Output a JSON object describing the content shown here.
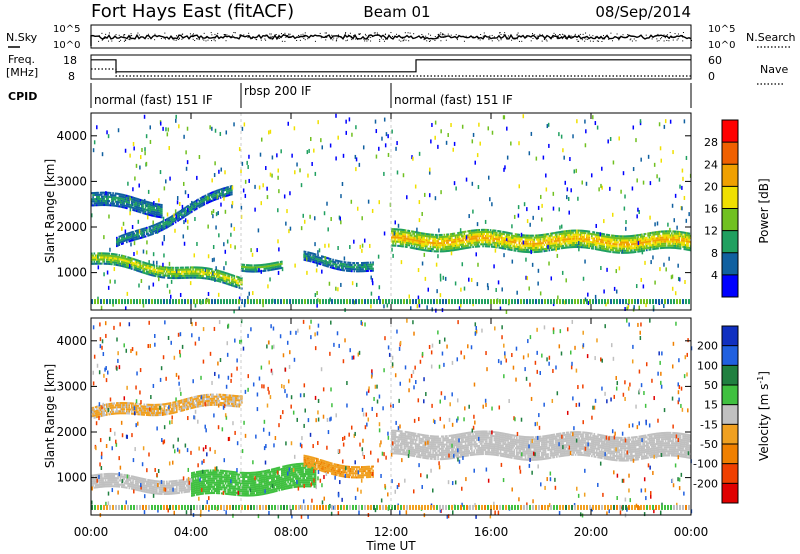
{
  "header": {
    "station": "Fort Hays East (fitACF)",
    "beam": "Beam 01",
    "date": "08/Sep/2014"
  },
  "noise_panel": {
    "left_label": "N.Sky",
    "right_label": "N.Search",
    "left_ticks": [
      "10^5",
      "10^0"
    ],
    "right_ticks": [
      "10^5",
      "10^0"
    ]
  },
  "freq_panel": {
    "left_label_top": "Freq.",
    "left_label_bottom": "[MHz]",
    "left_ticks": [
      "18",
      "8"
    ],
    "right_ticks": [
      "60",
      "0"
    ],
    "right_label": "Nave"
  },
  "cpid_panel": {
    "label": "CPID",
    "segments": [
      {
        "name": "normal (fast) 151 IF",
        "start_h": 0.0,
        "end_h": 6.0
      },
      {
        "name": "rbsp 200 IF",
        "start_h": 6.0,
        "end_h": 12.0
      },
      {
        "name": "normal (fast) 151 IF",
        "start_h": 12.0,
        "end_h": 24.0
      }
    ]
  },
  "power_colorbar": {
    "label": "Power [dB]",
    "ticks": [
      "28",
      "24",
      "20",
      "16",
      "12",
      "8",
      "4"
    ],
    "colors": [
      "#ff0000",
      "#f06000",
      "#f0a000",
      "#f0e000",
      "#70c020",
      "#20a060",
      "#1060a0",
      "#0000ff"
    ]
  },
  "velocity_colorbar": {
    "label": "Velocity [m s",
    "label_sup": "-1",
    "label_end": "]",
    "ticks": [
      "200",
      "100",
      "50",
      "15",
      "-15",
      "-50",
      "-100",
      "-200"
    ],
    "colors": [
      "#1030c0",
      "#2060e0",
      "#208040",
      "#40c040",
      "#c0c0c0",
      "#f0a020",
      "#f08000",
      "#f04000",
      "#e00000"
    ]
  },
  "x_axis": {
    "label": "Time UT",
    "ticks": [
      "00:00",
      "04:00",
      "08:00",
      "12:00",
      "16:00",
      "20:00",
      "00:00"
    ]
  },
  "y_axis": {
    "label": "Slant Range [km]",
    "ticks": [
      "1000",
      "2000",
      "3000",
      "4000"
    ]
  },
  "chart_data": [
    {
      "type": "heatmap",
      "title": "Power [dB]",
      "xlabel": "Time UT",
      "ylabel": "Slant Range [km]",
      "xlim_hours": [
        0,
        24
      ],
      "ylim_km": [
        180,
        4500
      ],
      "color_range_db": [
        0,
        30
      ],
      "bands": [
        {
          "from_h": 0.0,
          "to_h": 6.0,
          "range_km_start": 1300,
          "range_km_end": 800,
          "width_km": 260,
          "peak_db": 18
        },
        {
          "from_h": 0.0,
          "to_h": 2.8,
          "range_km_start": 2600,
          "range_km_end": 2400,
          "width_km": 300,
          "peak_db": 10
        },
        {
          "from_h": 1.0,
          "to_h": 5.6,
          "range_km_start": 1600,
          "range_km_end": 2800,
          "width_km": 200,
          "peak_db": 10
        },
        {
          "from_h": 6.0,
          "to_h": 7.6,
          "range_km_start": 1150,
          "range_km_end": 1150,
          "width_km": 180,
          "peak_db": 14
        },
        {
          "from_h": 8.5,
          "to_h": 11.3,
          "range_km_start": 1300,
          "range_km_end": 1100,
          "width_km": 200,
          "peak_db": 10
        },
        {
          "from_h": 12.0,
          "to_h": 24.0,
          "range_km_start": 1700,
          "range_km_end": 1650,
          "width_km": 380,
          "peak_db": 22
        }
      ]
    },
    {
      "type": "heatmap",
      "title": "Velocity",
      "xlabel": "Time UT",
      "ylabel": "Slant Range [km]",
      "xlim_hours": [
        0,
        24
      ],
      "ylim_km": [
        180,
        4500
      ],
      "color_range_ms": [
        -200,
        200
      ],
      "bands": [
        {
          "from_h": 0.0,
          "to_h": 4.0,
          "range_km_start": 900,
          "range_km_end": 800,
          "width_km": 300,
          "velocity_ms": 0
        },
        {
          "from_h": 4.0,
          "to_h": 9.0,
          "range_km_start": 800,
          "range_km_end": 1000,
          "width_km": 500,
          "velocity_ms": 30
        },
        {
          "from_h": 8.5,
          "to_h": 11.3,
          "range_km_start": 1300,
          "range_km_end": 1100,
          "width_km": 250,
          "velocity_ms": -40
        },
        {
          "from_h": 0.0,
          "to_h": 6.0,
          "range_km_start": 2400,
          "range_km_end": 2700,
          "width_km": 250,
          "velocity_ms": -20
        },
        {
          "from_h": 12.0,
          "to_h": 24.0,
          "range_km_start": 1700,
          "range_km_end": 1650,
          "width_km": 500,
          "velocity_ms": 0
        }
      ]
    }
  ]
}
